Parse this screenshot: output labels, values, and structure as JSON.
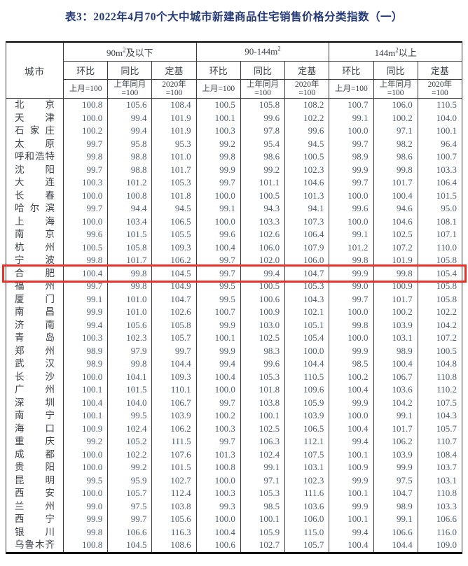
{
  "title": "表3：2022年4月70个大中城市新建商品住宅销售价格分类指数（一）",
  "colors": {
    "title_text": "#243a77",
    "label_text": "#3c4148",
    "number_text": "#4e5d6f",
    "grid_line": "#3a3a3a",
    "frame_line": "#000000",
    "highlight_border": "#e8332a"
  },
  "table": {
    "city_header": "城市",
    "groups": [
      {
        "label_pre": "90m",
        "label_sup": "2",
        "label_post": "及以下"
      },
      {
        "label_pre": "90-144m",
        "label_sup": "2",
        "label_post": ""
      },
      {
        "label_pre": "144m",
        "label_sup": "2",
        "label_post": "以上"
      }
    ],
    "sub_headers": [
      "环比",
      "同比",
      "定基"
    ],
    "base_headers": [
      "上月=100",
      "上年同月\n=100",
      "2020年\n=100"
    ],
    "highlighted_city": "合肥",
    "rows": [
      {
        "city": "北京",
        "values": [
          "100.8",
          "105.6",
          "108.4",
          "100.5",
          "105.8",
          "108.2",
          "100.7",
          "106.0",
          "110.5"
        ]
      },
      {
        "city": "天津",
        "values": [
          "100.0",
          "99.4",
          "101.9",
          "100.1",
          "99.6",
          "102.2",
          "99.1",
          "100.2",
          "104.0"
        ]
      },
      {
        "city": "石家庄",
        "values": [
          "100.2",
          "99.4",
          "101.9",
          "100.3",
          "97.8",
          "99.6",
          "100.0",
          "97.1",
          "100.1"
        ]
      },
      {
        "city": "太原",
        "values": [
          "99.7",
          "95.8",
          "95.3",
          "99.2",
          "95.4",
          "94.5",
          "99.7",
          "98.2",
          "96.4"
        ]
      },
      {
        "city": "呼和浩特",
        "values": [
          "99.8",
          "98.8",
          "101.0",
          "99.8",
          "98.6",
          "100.5",
          "98.9",
          "98.6",
          "100.7"
        ]
      },
      {
        "city": "沈阳",
        "values": [
          "99.7",
          "98.8",
          "101.7",
          "99.9",
          "99.2",
          "102.3",
          "99.9",
          "99.8",
          "103.3"
        ]
      },
      {
        "city": "大连",
        "values": [
          "100.3",
          "101.2",
          "105.3",
          "99.7",
          "101.1",
          "104.6",
          "99.7",
          "101.7",
          "106.4"
        ]
      },
      {
        "city": "长春",
        "values": [
          "100.0",
          "100.8",
          "101.8",
          "100.0",
          "100.5",
          "101.3",
          "100.0",
          "100.4",
          "101.5"
        ]
      },
      {
        "city": "哈尔滨",
        "values": [
          "99.7",
          "94.4",
          "94.5",
          "99.1",
          "94.3",
          "94.1",
          "99.6",
          "94.6",
          "95.0"
        ]
      },
      {
        "city": "上海",
        "values": [
          "100.0",
          "103.4",
          "106.5",
          "100.0",
          "103.3",
          "107.3",
          "100.0",
          "104.6",
          "108.1"
        ]
      },
      {
        "city": "南京",
        "values": [
          "99.6",
          "101.5",
          "105.5",
          "99.6",
          "102.6",
          "106.4",
          "99.1",
          "102.5",
          "107.1"
        ]
      },
      {
        "city": "杭州",
        "values": [
          "100.5",
          "105.8",
          "109.3",
          "100.4",
          "106.0",
          "107.9",
          "101.2",
          "107.2",
          "110.0"
        ]
      },
      {
        "city": "宁波",
        "values": [
          "99.8",
          "101.7",
          "106.2",
          "99.7",
          "102.0",
          "106.0",
          "99.8",
          "101.9",
          "105.8"
        ]
      },
      {
        "city": "合肥",
        "values": [
          "100.4",
          "99.8",
          "104.5",
          "99.7",
          "99.4",
          "104.7",
          "99.9",
          "99.8",
          "105.4"
        ]
      },
      {
        "city": "福州",
        "values": [
          "99.7",
          "99.8",
          "104.9",
          "99.5",
          "100.5",
          "105.3",
          "99.0",
          "100.9",
          "105.8"
        ]
      },
      {
        "city": "厦门",
        "values": [
          "99.1",
          "101.0",
          "104.7",
          "99.5",
          "100.6",
          "104.3",
          "99.7",
          "101.7",
          "105.8"
        ]
      },
      {
        "city": "南昌",
        "values": [
          "99.9",
          "101.0",
          "102.6",
          "100.7",
          "100.9",
          "102.1",
          "100.0",
          "100.2",
          "102.2"
        ]
      },
      {
        "city": "济南",
        "values": [
          "99.4",
          "105.6",
          "105.8",
          "99.9",
          "103.0",
          "105.1",
          "99.8",
          "103.9",
          "104.2"
        ]
      },
      {
        "city": "青岛",
        "values": [
          "100.3",
          "102.3",
          "105.7",
          "100.1",
          "102.5",
          "105.4",
          "100.0",
          "103.1",
          "107.2"
        ]
      },
      {
        "city": "郑州",
        "values": [
          "98.9",
          "97.9",
          "99.7",
          "99.9",
          "98.3",
          "100.0",
          "99.9",
          "98.9",
          "100.5"
        ]
      },
      {
        "city": "武汉",
        "values": [
          "98.9",
          "99.8",
          "104.4",
          "99.4",
          "99.6",
          "104.4",
          "98.5",
          "100.4",
          "104.8"
        ]
      },
      {
        "city": "长沙",
        "values": [
          "100.0",
          "104.1",
          "109.3",
          "100.4",
          "105.3",
          "110.5",
          "100.2",
          "106.7",
          "110.8"
        ]
      },
      {
        "city": "广州",
        "values": [
          "100.1",
          "101.5",
          "110.1",
          "100.0",
          "101.8",
          "109.6",
          "100.4",
          "103.6",
          "110.2"
        ]
      },
      {
        "city": "深圳",
        "values": [
          "100.4",
          "104.0",
          "106.7",
          "99.7",
          "103.8",
          "105.9",
          "99.9",
          "104.2",
          "107.5"
        ]
      },
      {
        "city": "南宁",
        "values": [
          "100.1",
          "99.5",
          "103.9",
          "100.2",
          "100.1",
          "103.9",
          "100.0",
          "99.1",
          "104.3"
        ]
      },
      {
        "city": "海口",
        "values": [
          "100.9",
          "102.4",
          "106.2",
          "100.3",
          "102.5",
          "106.5",
          "100.4",
          "101.7",
          "105.7"
        ]
      },
      {
        "city": "重庆",
        "values": [
          "99.2",
          "105.2",
          "111.5",
          "99.7",
          "106.3",
          "112.1",
          "99.4",
          "106.2",
          "110.7"
        ]
      },
      {
        "city": "成都",
        "values": [
          "100.0",
          "102.2",
          "107.6",
          "101.3",
          "102.4",
          "107.5",
          "100.1",
          "103.9",
          "108.4"
        ]
      },
      {
        "city": "贵阳",
        "values": [
          "100.0",
          "99.2",
          "101.5",
          "100.8",
          "99.1",
          "103.1",
          "100.9",
          "99.9",
          "103.7"
        ]
      },
      {
        "city": "昆明",
        "values": [
          "99.5",
          "95.9",
          "102.7",
          "100.0",
          "97.1",
          "102.3",
          "99.9",
          "97.5",
          "103.1"
        ]
      },
      {
        "city": "西安",
        "values": [
          "100.0",
          "105.7",
          "112.4",
          "100.3",
          "105.3",
          "111.6",
          "100.1",
          "104.7",
          "110.8"
        ]
      },
      {
        "city": "兰州",
        "values": [
          "99.0",
          "97.5",
          "103.8",
          "99.3",
          "98.5",
          "103.6",
          "99.9",
          "98.9",
          "103.3"
        ]
      },
      {
        "city": "西宁",
        "values": [
          "99.9",
          "99.7",
          "105.6",
          "100.0",
          "100.1",
          "106.0",
          "100.1",
          "99.1",
          "106.6"
        ]
      },
      {
        "city": "银川",
        "values": [
          "99.8",
          "106.6",
          "116.3",
          "100.4",
          "105.9",
          "115.0",
          "99.4",
          "106.6",
          "116.0"
        ]
      },
      {
        "city": "乌鲁木齐",
        "values": [
          "100.8",
          "104.5",
          "108.6",
          "100.6",
          "102.7",
          "105.7",
          "100.4",
          "104.4",
          "109.0"
        ]
      }
    ]
  }
}
